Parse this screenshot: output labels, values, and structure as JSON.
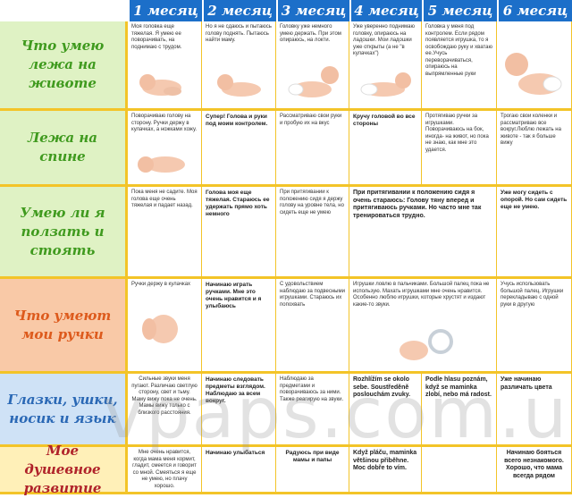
{
  "headers": [
    "1 месяц",
    "2 месяц",
    "3 месяц",
    "4 месяц",
    "5 месяц",
    "6 месяц"
  ],
  "rows": [
    {
      "label": "Что умею лежа на животе",
      "cells": [
        "Моя головка еще тяжелая. Я умею ее поворачивать, на поднимаю с трудом.",
        "Но я не сдаюсь и пытаюсь голову поднять. Пытаюсь найти маму.",
        "Головку уже немного умею держать. При этом опираюсь, на локти.",
        "Уже уверенно поднимаю головку, опираюсь на ладошки. Мои ладошки уже открыты (а не \"в кулачках\")",
        "Головка у меня под контролем. Если рядом появляется игрушка, то я освобождаю руку и хватаю ее.Учусь переворачиваться, опираюсь на выпрямленные руки",
        ""
      ]
    },
    {
      "label": "Лежа на спине",
      "cells": [
        "Поворачиваю голову на сторону. Ручки держу в кулачках, а ножками хожу.",
        "Супер! Голова и руки под моим контролем.",
        "Рассматриваю свои руки и пробую их на вкус",
        "Кручу головой во все стороны",
        "Протягиваю ручки за игрушками. Поворачиваюсь на бок, иногда- на живот, но пока не знаю, как мне это удается.",
        "Трогаю свои коленки и рассматриваю все вокруг.Люблю лежать на животе - так я больше вижу"
      ]
    },
    {
      "label": "Умею ли я ползать и стоять",
      "cells": [
        "Пока меня не садите. Моя голова еще очень тяжелая и падает назад.",
        "Голова моя еще тяжелая. Стараюсь ее удержать прямо хоть немного",
        "При притягивании к положению сидя я держу голову на уровне тела, но сидеть еще не умею",
        "При притягивании к положению сидя я очень стараюсь: Голову тяну вперед и притягиваюсь ручками. Но часто мне так тренироваться трудно.",
        "Уже могу сидеть с опорой. Но сам сидеть еще не умею."
      ]
    },
    {
      "label": "Что умеют мои ручки",
      "cells": [
        "Ручки держу в кулачках",
        "Начинаю играть ручками. Мне это очень нравится и я улыбаюсь",
        "С удовольствием наблюдаю за подвесными игрушками. Стараюсь их попохвать",
        "Игрушки ловлю в пальчиками. Большой палец пока не использую. Махать игрушками мне очень нравится. Особенно люблю игрушки, которые хрустят и издают какие-то звуки.",
        "Учусь использовать большой палец. Игрушки перекладываю с одной руки в другую"
      ]
    },
    {
      "label": "Глазки, ушки, носик и язык",
      "cells": [
        "Сильные звуки меня пугают. Различаю светлую сторону, свет и тьму. Маму вижу пока не очень. Мамы вижу только с близкого расстояния.",
        "Начинаю следовать предметы взглядом. Наблюдаю за всем вокруг.",
        "Наблюдаю за предметами и поворачиваюсь за ними. Также реагирую на звуки.",
        "Rozhlížím se okolo sebe. Soustředěně poslouchám zvuky.",
        "Podle hlasu poznám, když se maminka zlobí, nebo má radost.",
        "Уже начинаю различать цвета"
      ]
    },
    {
      "label": "Мое душевное развитие",
      "cells": [
        "Мне очень нравится, когда мама меня кормит, гладит, смеется и говорит со мной. Смеяться я еще не умею, но плачу хорошо.",
        "Начинаю улыбаться",
        "Радуюсь при виде мамы и папы",
        "Když pláču, maminka většinou přiběhne. Moc dobře to vím.",
        "",
        "Начинаю бояться всего незнакомого. Хорошо, что мама всегда рядом"
      ]
    }
  ],
  "watermark": "vpaps.com.ua",
  "colors": {
    "header_bg": "#1c6fc9",
    "border": "#f3c428",
    "green_label": "#3f9a1e",
    "orange_label": "#dd5a1c",
    "blue_label": "#2a68b5",
    "red_label": "#b0232a"
  }
}
